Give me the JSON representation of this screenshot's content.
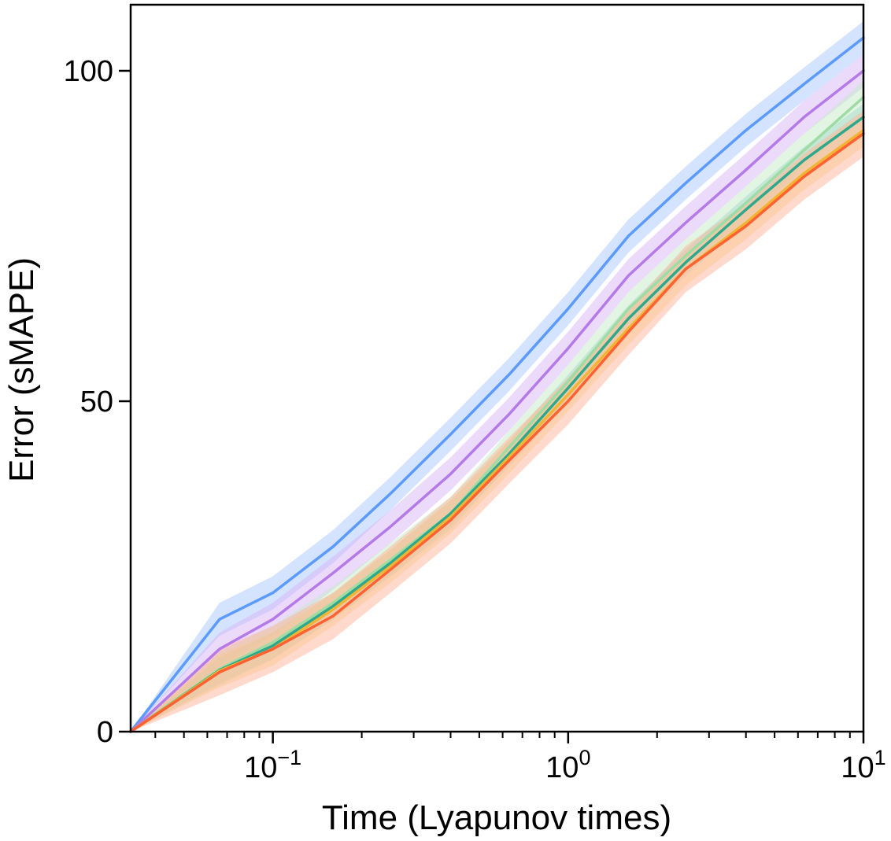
{
  "chart_data": {
    "type": "line",
    "title": "",
    "xlabel": "Time (Lyapunov times)",
    "ylabel": "Error (sMAPE)",
    "xscale": "log",
    "xlim": [
      0.033,
      10
    ],
    "ylim": [
      0,
      110
    ],
    "grid": false,
    "legend": "none",
    "yticks": [
      {
        "value": 0,
        "label": "0"
      },
      {
        "value": 50,
        "label": "50"
      },
      {
        "value": 100,
        "label": "100"
      }
    ],
    "xticks": [
      {
        "value": 0.1,
        "base": "10",
        "exp": "−1"
      },
      {
        "value": 1,
        "base": "10",
        "exp": "0"
      },
      {
        "value": 10,
        "base": "10",
        "exp": "1"
      }
    ],
    "x": [
      0.033,
      0.066,
      0.1,
      0.16,
      0.25,
      0.4,
      0.63,
      1.0,
      1.6,
      2.5,
      4.0,
      6.3,
      10.0
    ],
    "series": [
      {
        "color": "#5b9aff",
        "band_color": "#a9c7ff",
        "band": 2.5,
        "values": [
          0,
          17,
          21,
          28,
          36,
          45,
          54,
          64,
          75,
          83,
          91,
          98,
          105
        ]
      },
      {
        "color": "#b47ae8",
        "band_color": "#d8b6f5",
        "band": 2.5,
        "values": [
          0,
          12.5,
          17,
          24,
          31,
          39,
          48,
          58,
          69,
          77,
          85,
          93,
          100
        ]
      },
      {
        "color": "#9fdca5",
        "band_color": "#c6ecc8",
        "band": 2.5,
        "values": [
          0,
          9.5,
          13.5,
          19.5,
          26,
          33,
          43,
          53,
          64,
          72,
          80,
          88,
          96
        ]
      },
      {
        "color": "#2ea88c",
        "band_color": "#a3dccb",
        "band": 2.0,
        "values": [
          0,
          9.3,
          13,
          19,
          25.5,
          33,
          42,
          52,
          62.5,
          71,
          79,
          86.5,
          93
        ]
      },
      {
        "color": "#f2b533",
        "band_color": "#f8d98f",
        "band": 2.5,
        "values": [
          0,
          9.2,
          12.5,
          18.5,
          25,
          32.5,
          41.5,
          51,
          61,
          70,
          77,
          84.5,
          91
        ]
      },
      {
        "color": "#ff6133",
        "band_color": "#ffb499",
        "band": 3.5,
        "values": [
          0,
          9,
          12.5,
          17.5,
          24.5,
          32,
          41,
          50,
          60.5,
          70,
          76.5,
          84,
          90.5
        ]
      }
    ]
  }
}
